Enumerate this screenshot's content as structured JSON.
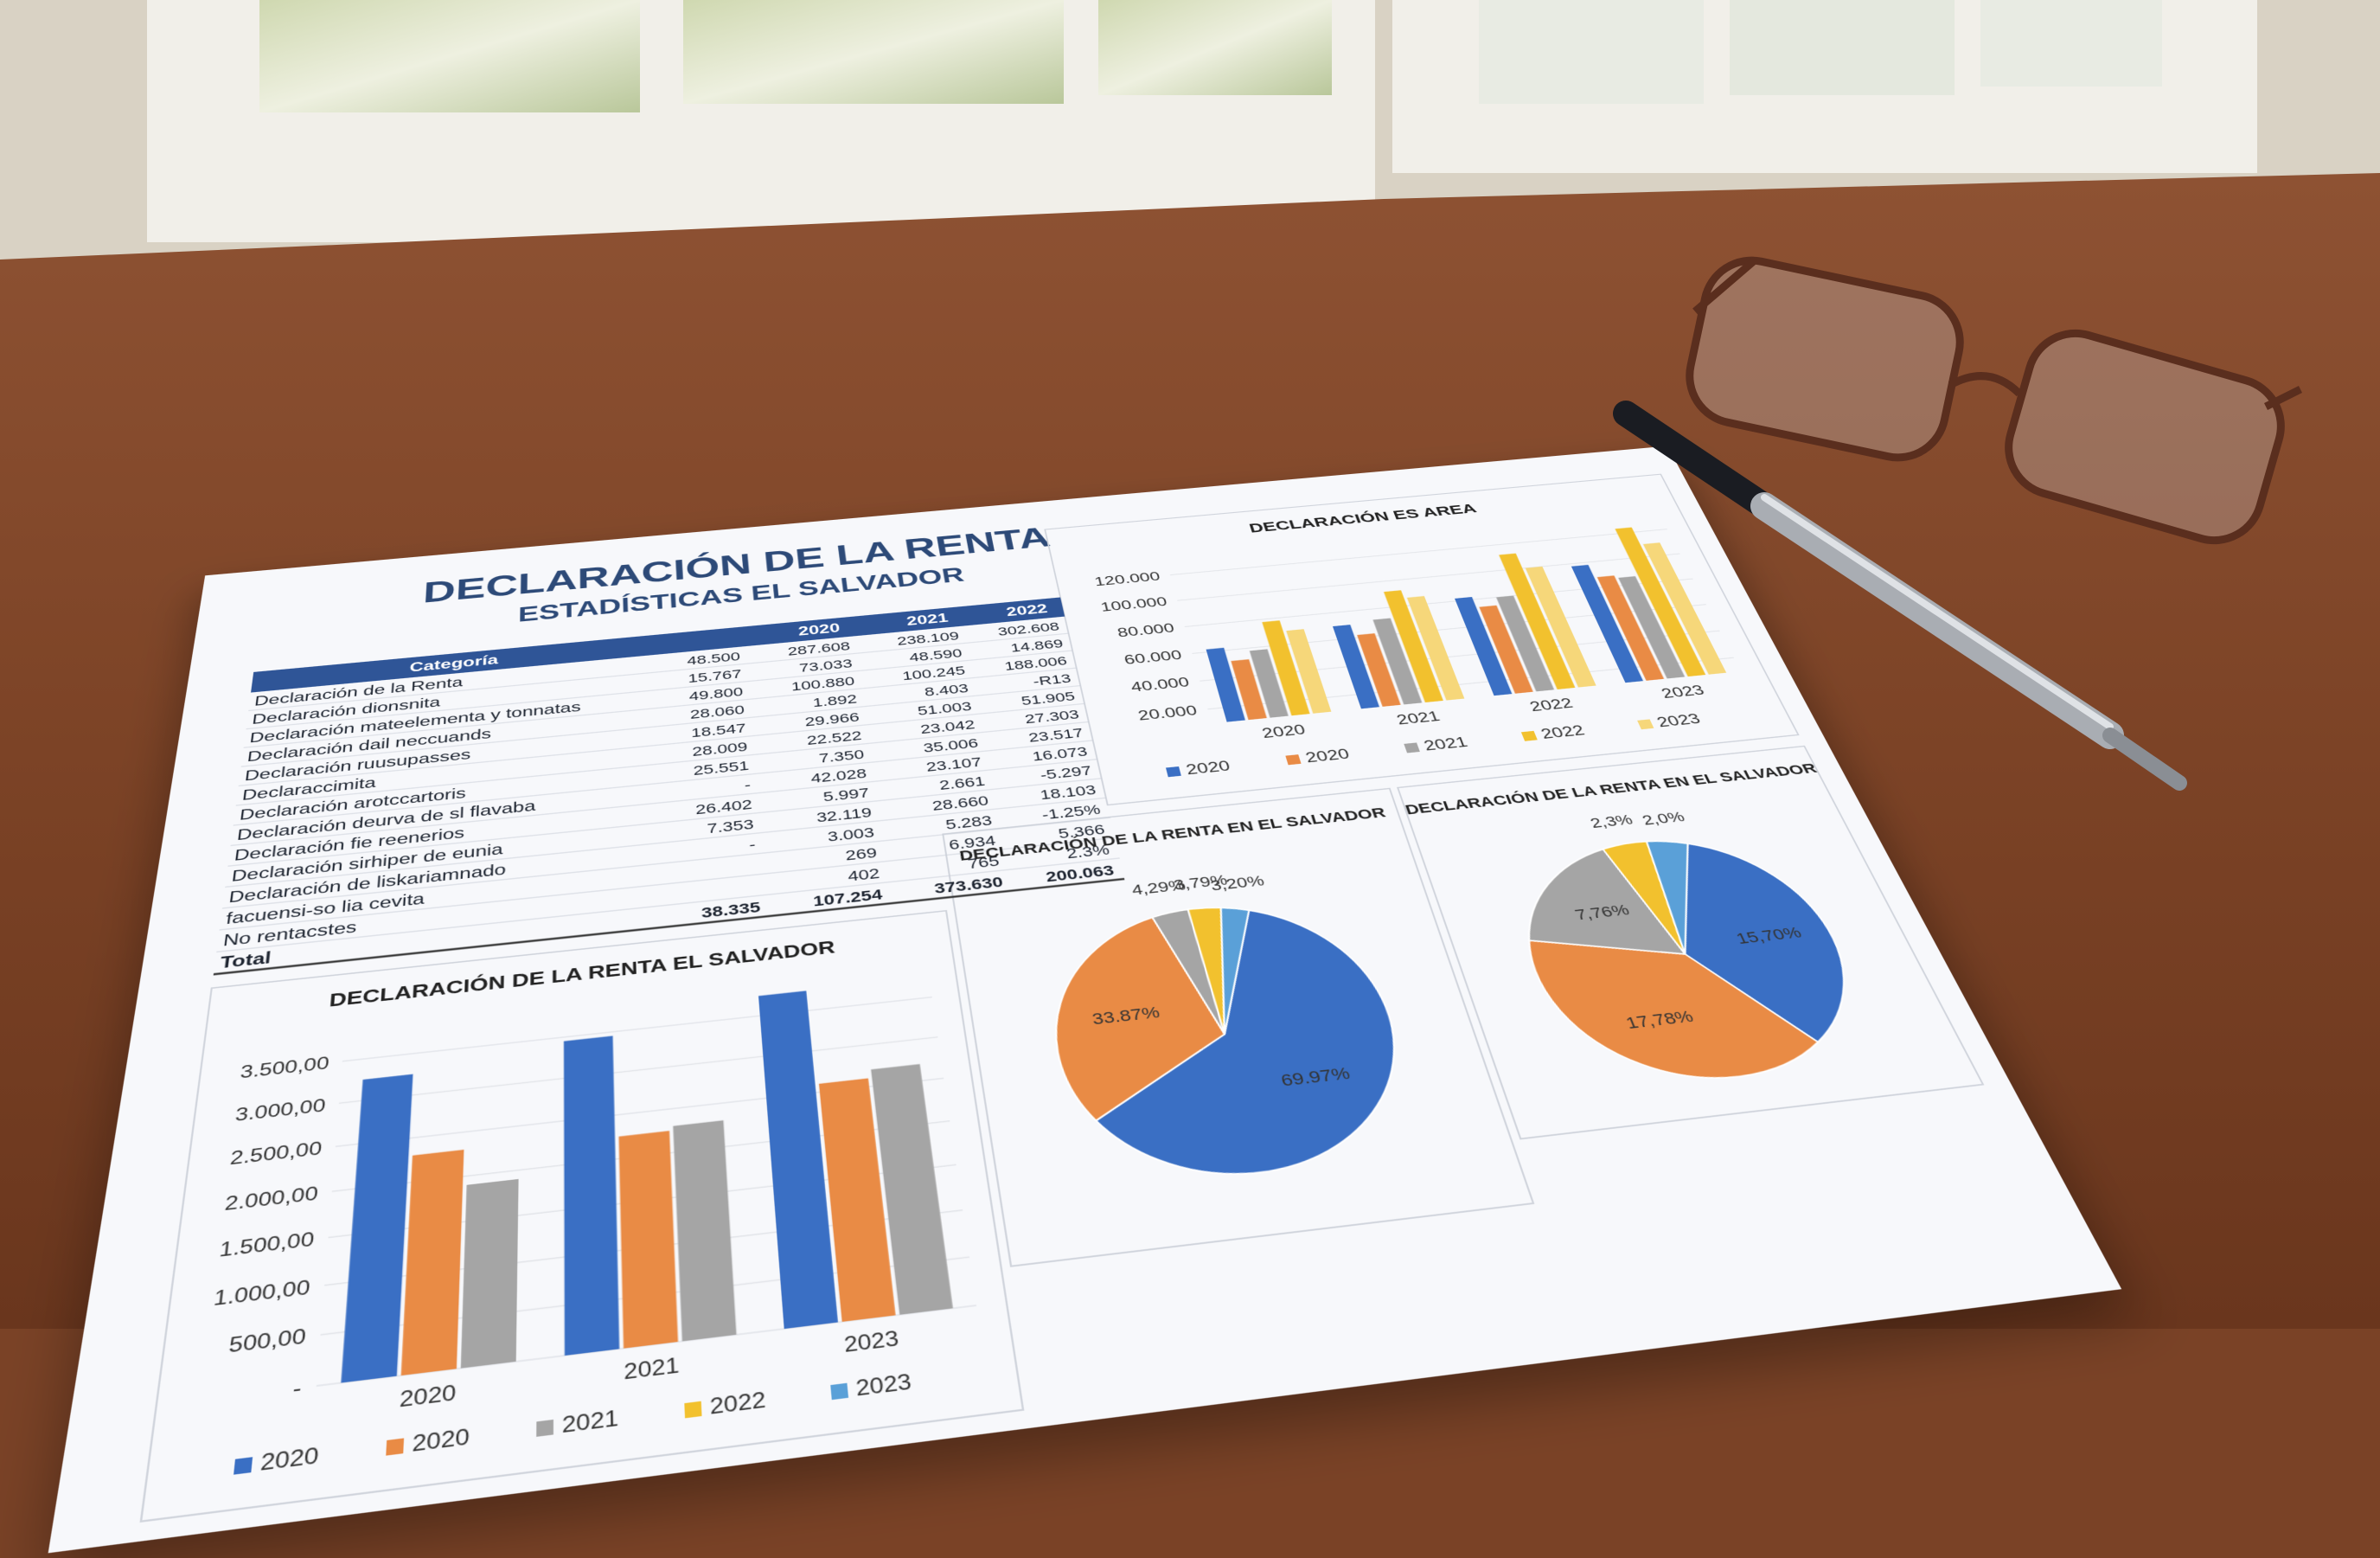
{
  "header": {
    "title": "DECLARACIÓN DE LA RENTA",
    "subtitle": "ESTADÍSTICAS EL SALVADOR"
  },
  "table": {
    "header": [
      "Categoría",
      "2020",
      "2021",
      "2022"
    ],
    "rows": [
      [
        "Declaración de la Renta",
        "48.500",
        "287.608",
        "238.109",
        "302.608"
      ],
      [
        "Declaración dionsnita",
        "15.767",
        "73.033",
        "48.590",
        "14.869"
      ],
      [
        "Declaración mateelementa y tonnatas",
        "49.800",
        "100.880",
        "100.245",
        "188.006"
      ],
      [
        "Declaración dail neccuands",
        "28.060",
        "1.892",
        "8.403",
        "-R13"
      ],
      [
        "Declaración ruusupasses",
        "18.547",
        "29.966",
        "51.003",
        "51.905"
      ],
      [
        "Declaraccimita",
        "28.009",
        "22.522",
        "23.042",
        "27.303"
      ],
      [
        "Declaración arotccartoris",
        "25.551",
        "7.350",
        "35.006",
        "23.517"
      ],
      [
        "Declaración deurva de sl flavaba",
        "-",
        "42.028",
        "23.107",
        "16.073"
      ],
      [
        "Declaración fie reenerios",
        "26.402",
        "5.997",
        "2.661",
        "-5.297"
      ],
      [
        "Declaración sirhiper de eunia",
        "7.353",
        "32.119",
        "28.660",
        "18.103"
      ],
      [
        "Declaración de liskariamnado",
        "-",
        "3.003",
        "5.283",
        "-1.25%"
      ],
      [
        "facuensi-so lia cevita",
        "269",
        "6.934",
        "5.366"
      ],
      [
        "No rentacstes",
        "402",
        "765",
        "2.3%"
      ],
      [
        "Total",
        "38.335",
        "107.254",
        "373.630",
        "200.063"
      ]
    ]
  },
  "chart_data": [
    {
      "type": "bar",
      "title": "DECLARACIÓN ES AREA",
      "categories": [
        "2020",
        "2021",
        "2022",
        "2023"
      ],
      "ylim": [
        10000,
        130000
      ],
      "yticks": [
        {
          "value": 20000,
          "label": "20.000"
        },
        {
          "value": 40000,
          "label": "40.000"
        },
        {
          "value": 60000,
          "label": "60.000"
        },
        {
          "value": 80000,
          "label": "80.000"
        },
        {
          "value": 100000,
          "label": "100.000"
        },
        {
          "value": 120000,
          "label": "120.000"
        }
      ],
      "grid": true,
      "series": [
        {
          "name": "2020",
          "color": "#3a6fc4",
          "values": [
            62000,
            70000,
            82000,
            98000
          ]
        },
        {
          "name": "2020",
          "color": "#e98b45",
          "values": [
            52000,
            62000,
            74000,
            88000
          ]
        },
        {
          "name": "2021",
          "color": "#a5a5a5",
          "values": [
            58000,
            72000,
            80000,
            86000
          ]
        },
        {
          "name": "2022",
          "color": "#f2c12e",
          "values": [
            78000,
            92000,
            112000,
            124000
          ]
        },
        {
          "name": "2023",
          "color": "#f6d77a",
          "values": [
            70000,
            86000,
            100000,
            110000
          ]
        }
      ]
    },
    {
      "type": "bar",
      "title": "DECLARACIÓN DE LA RENTA EL SALVADOR",
      "categories": [
        "2020",
        "2021",
        "2023"
      ],
      "ylim": [
        0,
        3800
      ],
      "yticks": [
        {
          "value": 0,
          "label": "-"
        },
        {
          "value": 500,
          "label": "500,00"
        },
        {
          "value": 1000,
          "label": "1.000,00"
        },
        {
          "value": 1500,
          "label": "1.500,00"
        },
        {
          "value": 2000,
          "label": "2.000,00"
        },
        {
          "value": 2500,
          "label": "2.500,00"
        },
        {
          "value": 3000,
          "label": "3.000,00"
        },
        {
          "value": 3500,
          "label": "3.500,00"
        }
      ],
      "grid": true,
      "series": [
        {
          "name": "2020",
          "color": "#3a6fc4",
          "values": [
            3250,
            3450,
            3750
          ]
        },
        {
          "name": "2020",
          "color": "#e98b45",
          "values": [
            2300,
            2250,
            2600
          ]
        },
        {
          "name": "2021",
          "color": "#a5a5a5",
          "values": [
            1900,
            2300,
            2700
          ]
        },
        {
          "name": "2022",
          "color": "#f2c12e",
          "values": [
            null,
            null,
            null
          ]
        },
        {
          "name": "2023",
          "color": "#5aa0d8",
          "values": [
            null,
            null,
            null
          ]
        }
      ]
    },
    {
      "type": "pie",
      "title": "DECLARACIÓN DE LA RENTA EN EL SALVADOR",
      "values": [
        69.97,
        33.87,
        4.29,
        3.79,
        3.2
      ],
      "value_labels": [
        "69.97%",
        "33.87%",
        "4,29%",
        "3,79%",
        "3,20%"
      ],
      "colors": [
        "#3a6fc4",
        "#e98b45",
        "#a5a5a5",
        "#f2c12e",
        "#5aa0d8"
      ]
    },
    {
      "type": "pie",
      "title": "DECLARACIÓN DE LA RENTA EN EL SALVADOR",
      "values": [
        15.7,
        17.78,
        7.76,
        2.3,
        2.0
      ],
      "value_labels": [
        "15,70%",
        "17,78%",
        "7,76%",
        "2,3%",
        "2,0%"
      ],
      "colors": [
        "#3a6fc4",
        "#e98b45",
        "#a5a5a5",
        "#f2c12e",
        "#5aa0d8"
      ]
    }
  ]
}
